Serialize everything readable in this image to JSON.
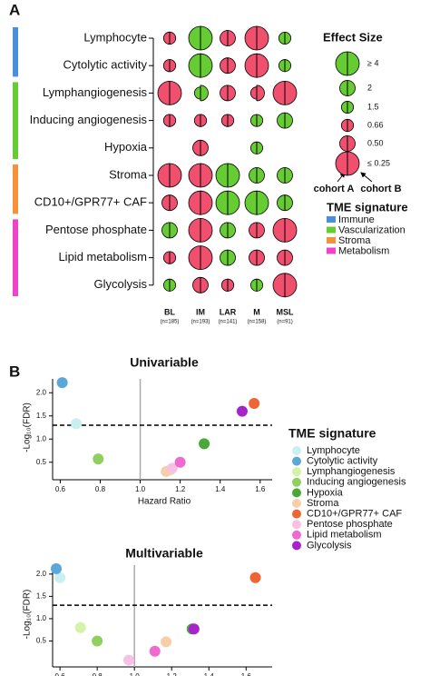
{
  "chart_data": [
    {
      "type": "dot-matrix",
      "panel": "A",
      "columns": [
        "BL",
        "IM",
        "LAR",
        "M",
        "MSL"
      ],
      "column_n": [
        "(n=185)",
        "(n=193)",
        "(n=141)",
        "(n=158)",
        "(n=91)"
      ],
      "cohorts": [
        "cohort A",
        "cohort B"
      ],
      "increase_color": "#66cc33",
      "decrease_color": "#f0506e",
      "size_legend_title": "Effect Size",
      "size_legend": [
        {
          "value": 4,
          "label": "≥ 4"
        },
        2,
        1.5,
        0.66,
        {
          "value": 0.5,
          "label": "0.50"
        },
        {
          "value": 0.25,
          "label": "≤ 0.25"
        }
      ],
      "group_legend_title": "TME signature",
      "groups": [
        {
          "name": "Immune",
          "color": "#4a90d9",
          "rows": [
            {
              "label": "Lymphocyte",
              "a": [
                0.66,
                4,
                0.5,
                0.25,
                1.5
              ],
              "b": [
                0.66,
                4,
                0.5,
                0.25,
                1.5
              ]
            },
            {
              "label": "Cytolytic activity",
              "a": [
                0.66,
                4,
                0.5,
                0.25,
                1.5
              ],
              "b": [
                0.66,
                4,
                0.5,
                0.25,
                1.5
              ]
            }
          ]
        },
        {
          "name": "Vascularization",
          "color": "#66cc33",
          "rows": [
            {
              "label": "Lymphangiogenesis",
              "a": [
                0.25,
                1.5,
                0.5,
                0.66,
                0.25
              ],
              "b": [
                0.25,
                2,
                0.5,
                0.5,
                0.25
              ]
            },
            {
              "label": "Inducing angiogenesis",
              "a": [
                0.66,
                0.66,
                0.66,
                1.5,
                2
              ],
              "b": [
                0.66,
                0.66,
                0.66,
                1.5,
                2
              ]
            },
            {
              "label": "Hypoxia",
              "a": [
                null,
                0.5,
                null,
                1.5,
                null
              ],
              "b": [
                null,
                0.5,
                null,
                1.5,
                null
              ]
            }
          ]
        },
        {
          "name": "Stroma",
          "color": "#f7923a",
          "rows": [
            {
              "label": "Stroma",
              "a": [
                0.25,
                0.25,
                4,
                2,
                2
              ],
              "b": [
                0.25,
                0.25,
                4,
                2,
                2
              ]
            },
            {
              "label": "CD10+/GPR77+ CAF",
              "a": [
                0.5,
                0.25,
                4,
                4,
                2
              ],
              "b": [
                0.5,
                0.25,
                4,
                4,
                2
              ]
            }
          ]
        },
        {
          "name": "Metabolism",
          "color": "#ee44cc",
          "rows": [
            {
              "label": "Pentose phosphate",
              "a": [
                2,
                0.25,
                2,
                0.5,
                0.25
              ],
              "b": [
                2,
                0.25,
                2,
                0.5,
                0.25
              ]
            },
            {
              "label": "Lipid metabolism",
              "a": [
                0.66,
                0.25,
                2,
                0.5,
                0.5
              ],
              "b": [
                0.66,
                0.25,
                2,
                0.5,
                0.5
              ]
            },
            {
              "label": "Glycolysis",
              "a": [
                1.5,
                0.5,
                0.66,
                1.5,
                0.25
              ],
              "b": [
                1.5,
                0.5,
                0.66,
                1.5,
                0.25
              ]
            }
          ]
        }
      ]
    },
    {
      "type": "scatter",
      "panel": "B",
      "legend_title": "TME signature",
      "series": [
        {
          "name": "Lymphocyte",
          "color": "#c9eff0"
        },
        {
          "name": "Cytolytic activity",
          "color": "#5aa7d8"
        },
        {
          "name": "Lymphangiogenesis",
          "color": "#d4f2a8"
        },
        {
          "name": "Inducing angiogenesis",
          "color": "#90d060"
        },
        {
          "name": "Hypoxia",
          "color": "#48a838"
        },
        {
          "name": "Stroma",
          "color": "#f6cfa8"
        },
        {
          "name": "CD10+/GPR77+ CAF",
          "color": "#ee6533"
        },
        {
          "name": "Pentose phosphate",
          "color": "#f8c0e2"
        },
        {
          "name": "Lipid metabolism",
          "color": "#ee6ad0"
        },
        {
          "name": "Glycolysis",
          "color": "#a524cc"
        }
      ],
      "panels": [
        {
          "title": "Univariable",
          "xlabel": "Hazard Ratio",
          "ylabel": "-Log₁₀(FDR)",
          "x": [
            0.68,
            0.61,
            1.15,
            0.79,
            1.32,
            1.13,
            1.57,
            1.16,
            1.2,
            1.51
          ],
          "y": [
            1.33,
            2.22,
            0.33,
            0.57,
            0.9,
            0.3,
            1.77,
            0.37,
            0.5,
            1.6
          ],
          "xlim": [
            0.58,
            1.66
          ],
          "ylim": [
            0.2,
            2.3
          ],
          "xticks": [
            0.6,
            0.8,
            {
              "value": 1,
              "label": "1.0"
            },
            1.2,
            1.4,
            1.6
          ],
          "yticks": [
            0.5,
            {
              "value": 1,
              "label": "1.0"
            },
            1.5,
            {
              "value": 2,
              "label": "2.0"
            }
          ],
          "threshold": 1.3,
          "reference_x": 1
        },
        {
          "title": "Multivariable",
          "xlabel": "Hazard Ratio",
          "ylabel": "-Log₁₀(FDR)",
          "x": [
            0.6,
            0.58,
            0.71,
            0.8,
            1.31,
            1.17,
            1.65,
            0.97,
            1.11,
            1.32
          ],
          "y": [
            1.92,
            2.12,
            0.8,
            0.5,
            0.77,
            0.48,
            1.92,
            0.07,
            0.27,
            0.77
          ],
          "xlim": [
            0.58,
            1.74
          ],
          "ylim": [
            0,
            2.2
          ],
          "xticks": [
            0.6,
            0.8,
            {
              "value": 1,
              "label": "1.0"
            },
            1.2,
            1.4,
            1.6
          ],
          "yticks": [
            0.5,
            {
              "value": 1,
              "label": "1.0"
            },
            1.5,
            {
              "value": 2,
              "label": "2.0"
            }
          ],
          "threshold": 1.3,
          "reference_x": 1
        }
      ]
    }
  ]
}
